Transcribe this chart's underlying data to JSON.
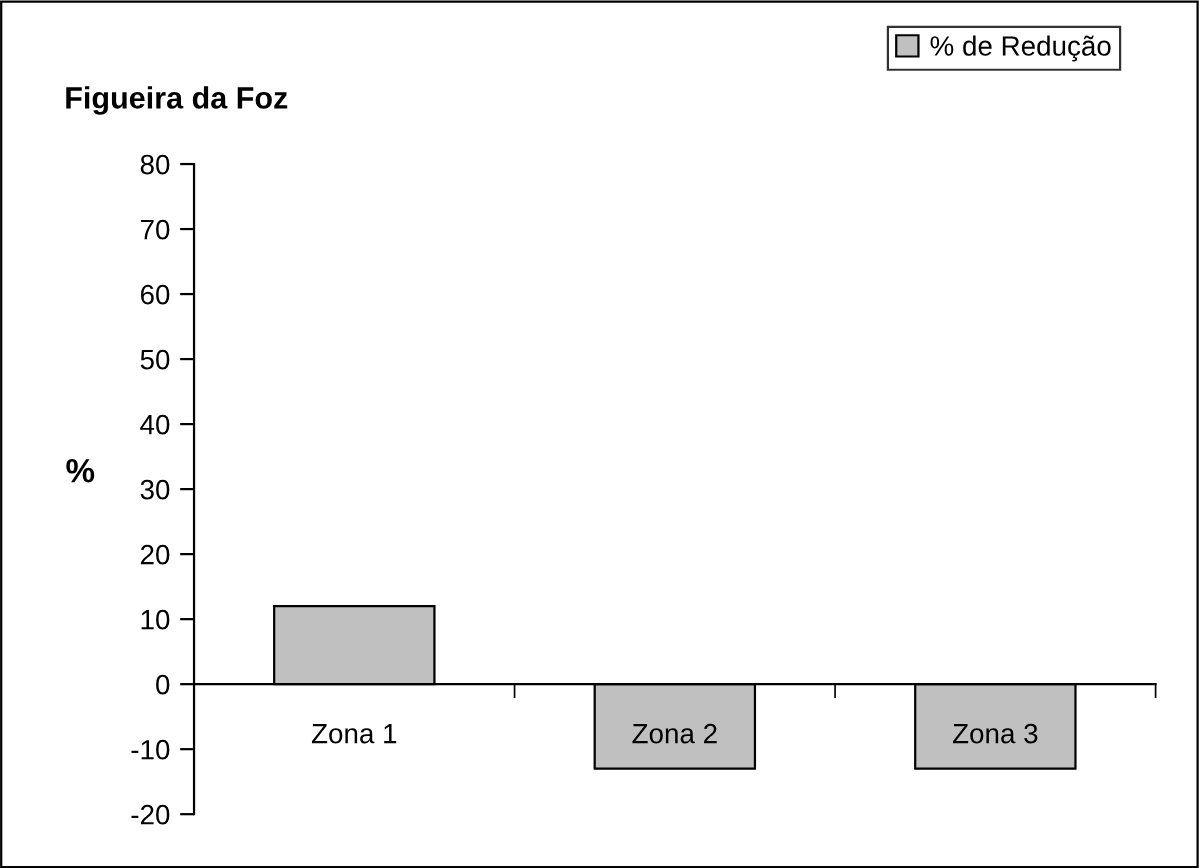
{
  "chart_data": {
    "type": "bar",
    "title": "Figueira da Foz",
    "ylabel": "%",
    "categories": [
      "Zona 1",
      "Zona 2",
      "Zona 3"
    ],
    "series": [
      {
        "name": "% de Redução",
        "color": "#c0c0c0",
        "values": [
          12,
          -13,
          -13
        ]
      }
    ],
    "ylim": [
      -20,
      80
    ],
    "yticks": [
      -20,
      -10,
      0,
      10,
      20,
      30,
      40,
      50,
      60,
      70,
      80
    ],
    "grid": false,
    "legend": "top right"
  }
}
